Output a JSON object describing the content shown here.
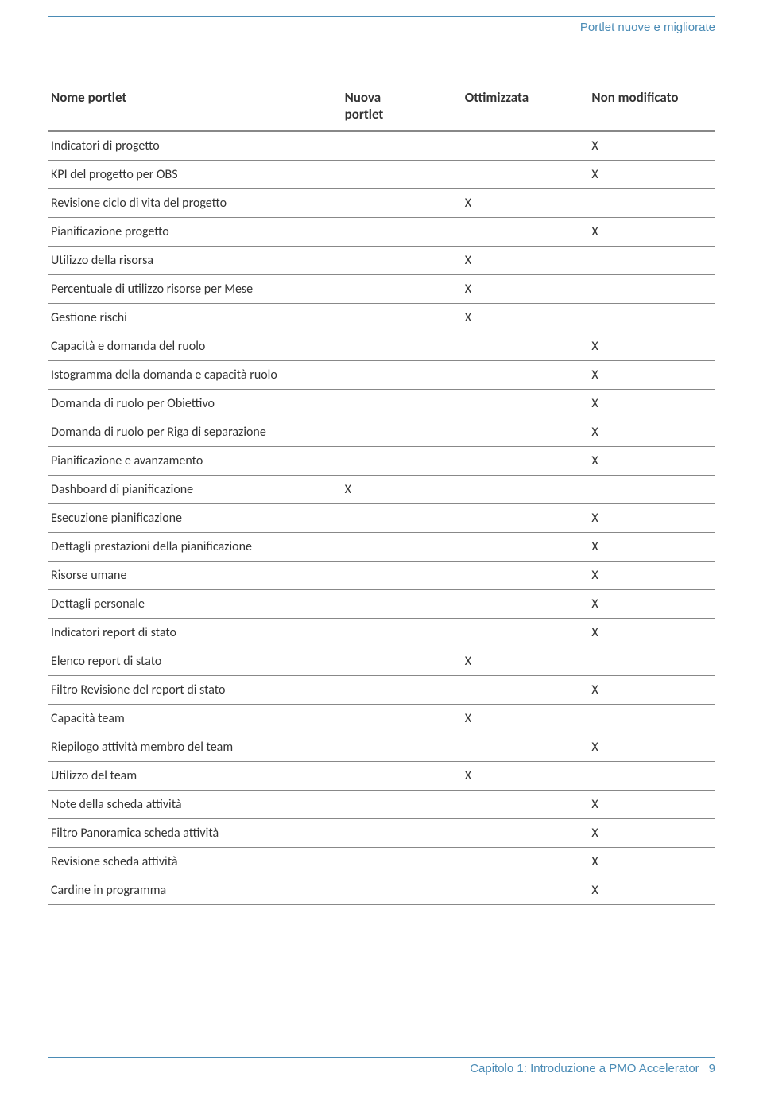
{
  "header": {
    "title": "Portlet nuove e migliorate"
  },
  "table": {
    "columns": {
      "name": "Nome portlet",
      "new_portlet": "Nuova portlet",
      "optimized": "Ottimizzata",
      "unmodified": "Non modificato"
    },
    "mark": "X",
    "rows": [
      {
        "name": "Indicatori di progetto",
        "new": "",
        "opt": "",
        "unm": "X"
      },
      {
        "name": "KPI del progetto per OBS",
        "new": "",
        "opt": "",
        "unm": "X"
      },
      {
        "name": "Revisione ciclo di vita del progetto",
        "new": "",
        "opt": "X",
        "unm": ""
      },
      {
        "name": "Pianificazione progetto",
        "new": "",
        "opt": "",
        "unm": "X"
      },
      {
        "name": "Utilizzo della risorsa",
        "new": "",
        "opt": "X",
        "unm": ""
      },
      {
        "name": "Percentuale di utilizzo risorse per Mese",
        "new": "",
        "opt": "X",
        "unm": ""
      },
      {
        "name": "Gestione rischi",
        "new": "",
        "opt": "X",
        "unm": ""
      },
      {
        "name": "Capacità e domanda del ruolo",
        "new": "",
        "opt": "",
        "unm": "X"
      },
      {
        "name": "Istogramma della domanda e capacità ruolo",
        "new": "",
        "opt": "",
        "unm": "X"
      },
      {
        "name": "Domanda di ruolo per Obiettivo",
        "new": "",
        "opt": "",
        "unm": "X"
      },
      {
        "name": "Domanda di ruolo per Riga di separazione",
        "new": "",
        "opt": "",
        "unm": "X"
      },
      {
        "name": "Pianificazione e avanzamento",
        "new": "",
        "opt": "",
        "unm": "X"
      },
      {
        "name": "Dashboard di pianificazione",
        "new": "X",
        "opt": "",
        "unm": ""
      },
      {
        "name": "Esecuzione pianificazione",
        "new": "",
        "opt": "",
        "unm": "X"
      },
      {
        "name": "Dettagli prestazioni della pianificazione",
        "new": "",
        "opt": "",
        "unm": "X"
      },
      {
        "name": "Risorse umane",
        "new": "",
        "opt": "",
        "unm": "X"
      },
      {
        "name": "Dettagli personale",
        "new": "",
        "opt": "",
        "unm": "X"
      },
      {
        "name": "Indicatori report di stato",
        "new": "",
        "opt": "",
        "unm": "X"
      },
      {
        "name": "Elenco report di stato",
        "new": "",
        "opt": "X",
        "unm": ""
      },
      {
        "name": "Filtro Revisione del report di stato",
        "new": "",
        "opt": "",
        "unm": "X"
      },
      {
        "name": "Capacità team",
        "new": "",
        "opt": "X",
        "unm": ""
      },
      {
        "name": "Riepilogo attività membro del team",
        "new": "",
        "opt": "",
        "unm": "X"
      },
      {
        "name": "Utilizzo del team",
        "new": "",
        "opt": "X",
        "unm": ""
      },
      {
        "name": "Note della scheda attività",
        "new": "",
        "opt": "",
        "unm": "X"
      },
      {
        "name": "Filtro Panoramica scheda attività",
        "new": "",
        "opt": "",
        "unm": "X"
      },
      {
        "name": "Revisione scheda attività",
        "new": "",
        "opt": "",
        "unm": "X"
      },
      {
        "name": "Cardine in programma",
        "new": "",
        "opt": "",
        "unm": "X"
      }
    ]
  },
  "footer": {
    "text": "Capitolo 1: Introduzione a PMO Accelerator",
    "page": "9"
  },
  "colors": {
    "accent": "#4a8bb5",
    "text": "#333333",
    "border_heavy": "#888888",
    "border_light": "#888888",
    "background": "#ffffff"
  },
  "typography": {
    "body_font": "Calibri, Arial, sans-serif",
    "header_font": "Arial, sans-serif",
    "th_fontsize": 17,
    "td_fontsize": 16,
    "header_fontsize": 15
  }
}
